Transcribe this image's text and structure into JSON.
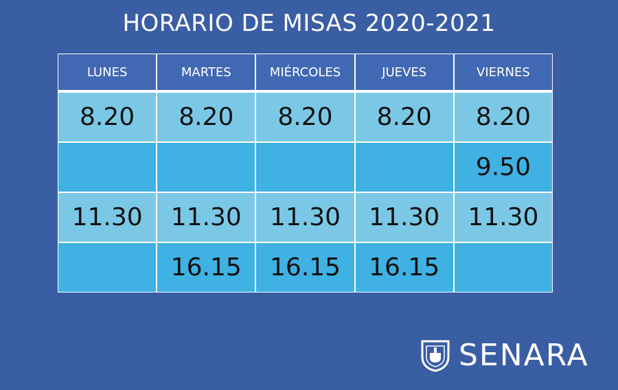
{
  "title": "HORARIO DE MISAS 2020-2021",
  "days": [
    "LUNES",
    "MARTES",
    "MIÉRCOLES",
    "JUEVES",
    "VIERNES"
  ],
  "rows": [
    [
      "8.20",
      "8.20",
      "8.20",
      "8.20",
      "8.20"
    ],
    [
      "",
      "",
      "",
      "",
      "9.50"
    ],
    [
      "11.30",
      "11.30",
      "11.30",
      "11.30",
      "11.30"
    ],
    [
      "",
      "16.15",
      "16.15",
      "16.15",
      ""
    ]
  ],
  "logo": {
    "name": "SENARA",
    "icon": "senara-shield-icon"
  },
  "colors": {
    "background": "#3a5ea4",
    "header": "#4169b3",
    "row_light": "#7bc8e6",
    "row_dark": "#3fb1e3"
  }
}
